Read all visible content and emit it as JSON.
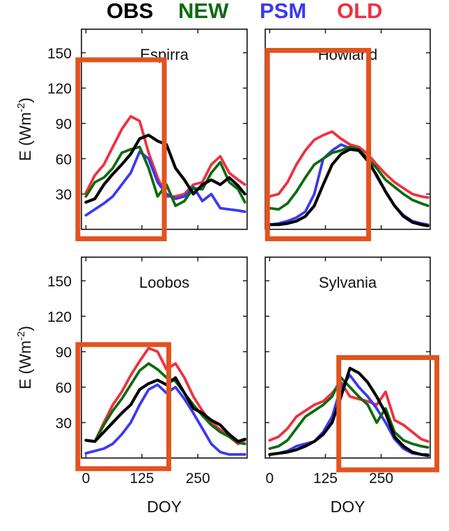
{
  "legend": {
    "obs": {
      "label": "OBS",
      "color": "#000000"
    },
    "new": {
      "label": "NEW",
      "color": "#0e6b0e"
    },
    "psm": {
      "label": "PSM",
      "color": "#3a3af0"
    },
    "old": {
      "label": "OLD",
      "color": "#f0303e"
    }
  },
  "highlight_color": "#e2531f",
  "chart_data": [
    {
      "type": "line",
      "title": "Espirra",
      "xlabel": "",
      "ylabel": "E (Wm-2)",
      "xlim": [
        -10,
        360
      ],
      "ylim": [
        0,
        170
      ],
      "xticks": [],
      "xtick_labels": [],
      "yticks": [
        30,
        60,
        90,
        120,
        150
      ],
      "highlight": {
        "x": [
          -18,
          175
        ],
        "y": [
          -8,
          144
        ]
      },
      "x": [
        0,
        20,
        40,
        60,
        80,
        100,
        120,
        140,
        160,
        180,
        200,
        220,
        240,
        260,
        280,
        300,
        320,
        340,
        355
      ],
      "series": [
        {
          "name": "OBS",
          "values": [
            23,
            26,
            38,
            47,
            55,
            64,
            77,
            80,
            75,
            72,
            52,
            42,
            30,
            38,
            42,
            38,
            44,
            37,
            30
          ]
        },
        {
          "name": "NEW",
          "values": [
            28,
            40,
            44,
            52,
            65,
            68,
            70,
            52,
            28,
            38,
            20,
            24,
            35,
            34,
            48,
            57,
            40,
            34,
            23
          ]
        },
        {
          "name": "PSM",
          "values": [
            12,
            17,
            22,
            28,
            38,
            48,
            66,
            60,
            40,
            30,
            26,
            28,
            36,
            24,
            30,
            18,
            17,
            16,
            15
          ]
        },
        {
          "name": "OLD",
          "values": [
            31,
            46,
            55,
            70,
            85,
            96,
            92,
            65,
            44,
            28,
            28,
            30,
            38,
            40,
            55,
            62,
            48,
            42,
            38
          ]
        }
      ]
    },
    {
      "type": "line",
      "title": "Howland",
      "xlabel": "",
      "ylabel": "",
      "xlim": [
        -10,
        360
      ],
      "ylim": [
        0,
        170
      ],
      "xticks": [],
      "xtick_labels": [],
      "yticks": [],
      "highlight": {
        "x": [
          -5,
          222
        ],
        "y": [
          -8,
          152
        ]
      },
      "x": [
        0,
        20,
        40,
        60,
        80,
        100,
        120,
        140,
        160,
        180,
        200,
        220,
        240,
        260,
        280,
        300,
        320,
        340,
        355
      ],
      "series": [
        {
          "name": "OBS",
          "values": [
            4,
            4,
            5,
            7,
            11,
            20,
            38,
            55,
            64,
            68,
            67,
            58,
            46,
            32,
            20,
            11,
            6,
            4,
            3
          ]
        },
        {
          "name": "NEW",
          "values": [
            18,
            17,
            22,
            32,
            44,
            55,
            60,
            65,
            67,
            70,
            68,
            60,
            52,
            42,
            36,
            30,
            25,
            22,
            20
          ]
        },
        {
          "name": "PSM",
          "values": [
            4,
            5,
            7,
            10,
            15,
            30,
            60,
            67,
            72,
            69,
            68,
            60,
            45,
            32,
            20,
            12,
            7,
            5,
            4
          ]
        },
        {
          "name": "OLD",
          "values": [
            28,
            30,
            40,
            55,
            67,
            76,
            80,
            83,
            77,
            72,
            70,
            64,
            55,
            47,
            40,
            35,
            30,
            28,
            27
          ]
        }
      ]
    },
    {
      "type": "line",
      "title": "Loobos",
      "xlabel": "DOY",
      "ylabel": "E (Wm-2)",
      "xlim": [
        -10,
        360
      ],
      "ylim": [
        0,
        170
      ],
      "xticks": [
        0,
        125,
        250
      ],
      "xtick_labels": [
        "0",
        "125",
        "250"
      ],
      "yticks": [
        30,
        60,
        90,
        120,
        150
      ],
      "highlight": {
        "x": [
          -18,
          185
        ],
        "y": [
          -9,
          96
        ]
      },
      "x": [
        0,
        20,
        40,
        60,
        80,
        100,
        120,
        140,
        160,
        180,
        200,
        220,
        240,
        260,
        280,
        300,
        320,
        340,
        355
      ],
      "series": [
        {
          "name": "OBS",
          "values": [
            15,
            14,
            22,
            30,
            38,
            45,
            58,
            63,
            66,
            62,
            68,
            55,
            42,
            38,
            32,
            28,
            20,
            14,
            16
          ]
        },
        {
          "name": "NEW",
          "values": [
            15,
            14,
            28,
            40,
            50,
            62,
            74,
            80,
            75,
            68,
            65,
            55,
            45,
            36,
            28,
            22,
            18,
            13,
            12
          ]
        },
        {
          "name": "PSM",
          "values": [
            4,
            6,
            8,
            12,
            20,
            30,
            45,
            58,
            62,
            55,
            60,
            50,
            38,
            25,
            12,
            5,
            3,
            3,
            3
          ]
        },
        {
          "name": "OLD",
          "values": [
            15,
            14,
            30,
            45,
            56,
            70,
            82,
            93,
            90,
            75,
            80,
            68,
            52,
            40,
            30,
            24,
            18,
            12,
            15
          ]
        }
      ]
    },
    {
      "type": "line",
      "title": "Sylvania",
      "xlabel": "DOY",
      "ylabel": "",
      "xlim": [
        -10,
        360
      ],
      "ylim": [
        0,
        170
      ],
      "xticks": [
        0,
        125,
        250
      ],
      "xtick_labels": [
        "0",
        "125",
        "250"
      ],
      "yticks": [],
      "highlight": {
        "x": [
          155,
          375
        ],
        "y": [
          -10,
          85
        ]
      },
      "x": [
        0,
        20,
        40,
        60,
        80,
        100,
        120,
        140,
        160,
        180,
        200,
        220,
        240,
        260,
        280,
        300,
        320,
        340,
        355
      ],
      "series": [
        {
          "name": "OBS",
          "values": [
            3,
            4,
            5,
            7,
            10,
            14,
            20,
            30,
            52,
            76,
            72,
            64,
            52,
            38,
            18,
            10,
            5,
            3,
            2
          ]
        },
        {
          "name": "NEW",
          "values": [
            8,
            10,
            15,
            25,
            35,
            40,
            45,
            52,
            68,
            60,
            52,
            45,
            30,
            42,
            22,
            15,
            12,
            10,
            9
          ]
        },
        {
          "name": "PSM",
          "values": [
            3,
            4,
            6,
            10,
            12,
            14,
            22,
            35,
            60,
            70,
            60,
            52,
            42,
            30,
            16,
            8,
            4,
            3,
            3
          ]
        },
        {
          "name": "OLD",
          "values": [
            15,
            18,
            25,
            35,
            40,
            45,
            48,
            55,
            64,
            52,
            50,
            48,
            45,
            56,
            32,
            28,
            22,
            16,
            14
          ]
        }
      ]
    }
  ]
}
